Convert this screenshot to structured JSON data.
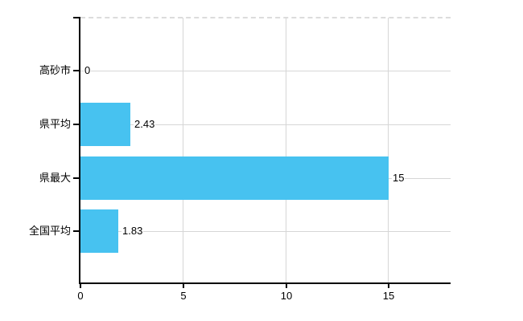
{
  "chart_data": {
    "type": "bar",
    "orientation": "horizontal",
    "categories": [
      "高砂市",
      "県平均",
      "県最大",
      "全国平均"
    ],
    "values": [
      0,
      2.43,
      15,
      1.83
    ],
    "value_labels": [
      "0",
      "2.43",
      "15",
      "1.83"
    ],
    "xlim": [
      0,
      18
    ],
    "x_ticks": [
      0,
      5,
      10,
      15
    ],
    "x_tick_labels": [
      "0",
      "5",
      "10",
      "15"
    ],
    "grid": true,
    "legend": false,
    "colors": {
      "bar": "#47c2f0",
      "grid": "#d6d6d6",
      "grid_dashed_top": "#dcdcdc",
      "axis": "#000000",
      "text": "#000000",
      "background": "#ffffff"
    }
  }
}
